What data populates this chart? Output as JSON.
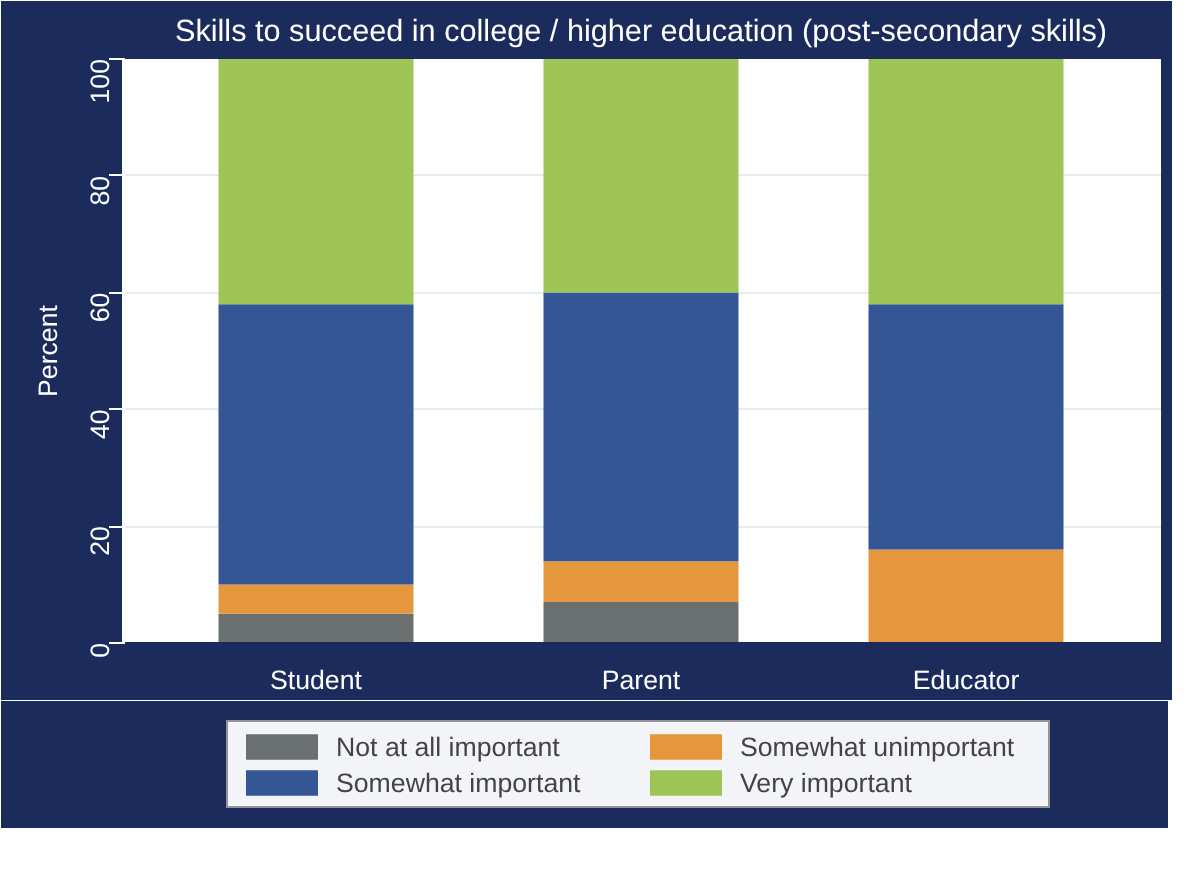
{
  "chart_data": {
    "type": "bar",
    "title": "Skills to succeed in college / higher education (post-secondary skills)",
    "ylabel": "Percent",
    "categories": [
      "Student",
      "Parent",
      "Educator"
    ],
    "series": [
      {
        "name": "Not at all important",
        "color": "#6a7070",
        "values": [
          5,
          7,
          0
        ]
      },
      {
        "name": "Somewhat unimportant",
        "color": "#e5973e",
        "values": [
          5,
          7,
          16
        ]
      },
      {
        "name": "Somewhat important",
        "color": "#355694",
        "values": [
          48,
          46,
          42
        ]
      },
      {
        "name": "Very important",
        "color": "#9dc455",
        "values": [
          42,
          40,
          42
        ]
      }
    ],
    "stacked": true,
    "ylim": [
      0,
      100
    ],
    "yticks": [
      0,
      20,
      40,
      60,
      80,
      100
    ],
    "grid": "y",
    "legend": "bottom"
  }
}
